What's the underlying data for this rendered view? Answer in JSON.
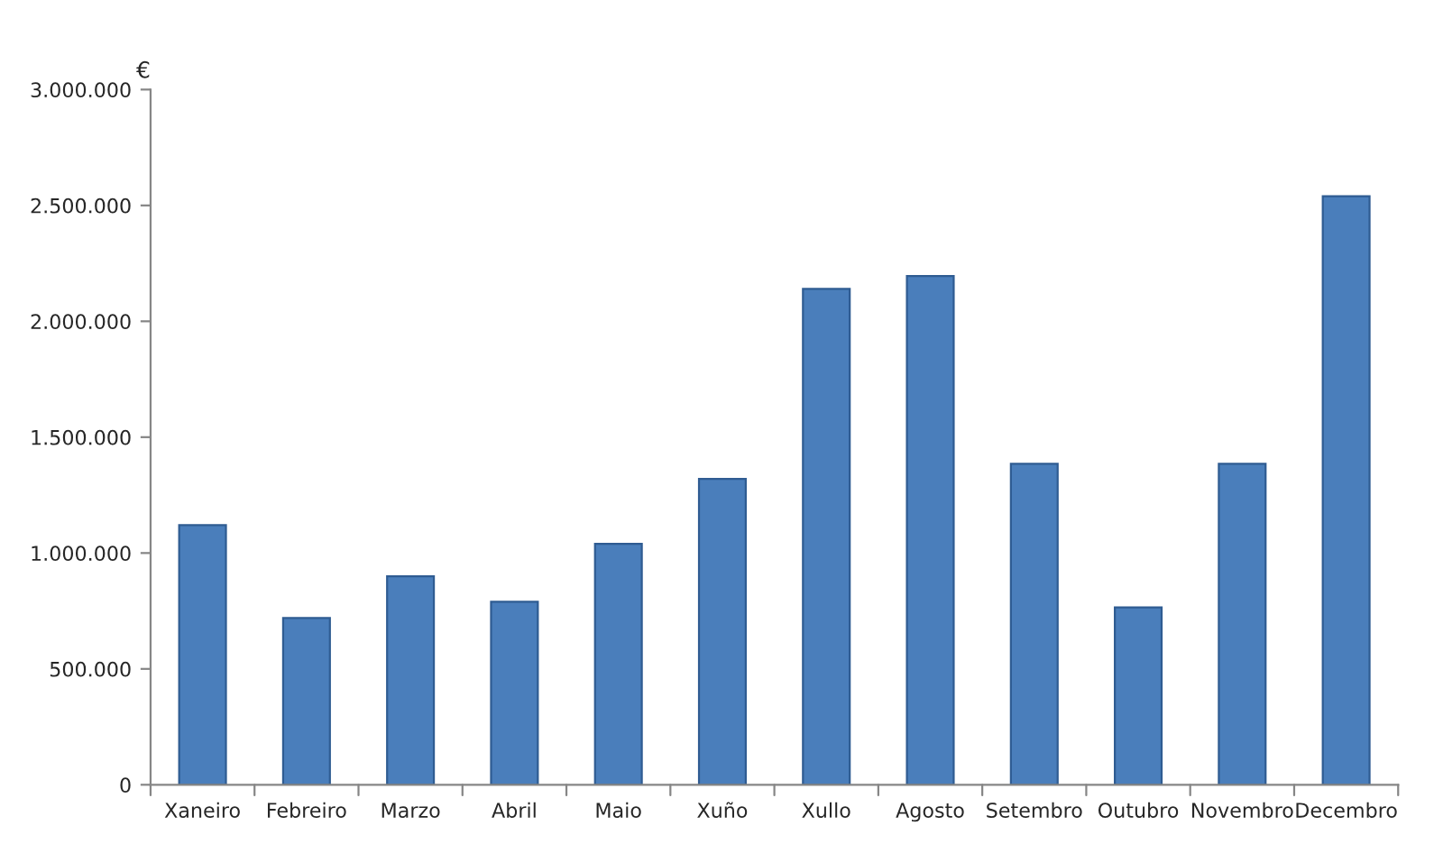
{
  "chart_data": {
    "type": "bar",
    "ylabel": "€",
    "categories": [
      "Xaneiro",
      "Febreiro",
      "Marzo",
      "Abril",
      "Maio",
      "Xuño",
      "Xullo",
      "Agosto",
      "Setembro",
      "Outubro",
      "Novembro",
      "Decembro"
    ],
    "values": [
      1120000,
      720000,
      900000,
      790000,
      1040000,
      1320000,
      2140000,
      2195000,
      1385000,
      765000,
      1385000,
      2540000
    ],
    "color": "#4a7ebb",
    "ylim": [
      0,
      3000000
    ],
    "yticks": [
      0,
      {
        "value": 500000,
        "label": "500.000"
      },
      {
        "value": 1000000,
        "label": "1.000.000"
      },
      {
        "value": 1500000,
        "label": "1.500.000"
      },
      {
        "value": 2000000,
        "label": "2.000.000"
      },
      {
        "value": 2500000,
        "label": "2.500.000"
      },
      {
        "value": 3000000,
        "label": "3.000.000"
      }
    ],
    "grid": false,
    "legend": false
  }
}
